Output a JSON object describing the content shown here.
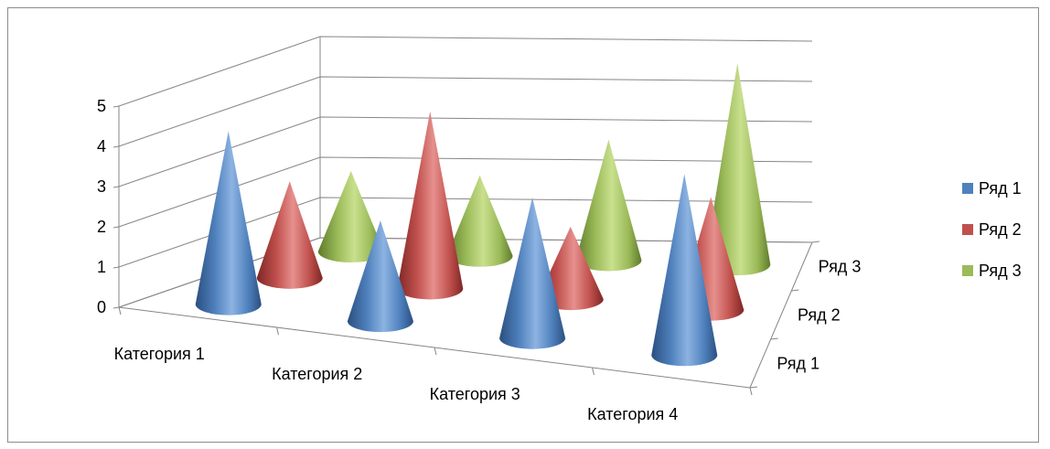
{
  "chart_data": {
    "type": "bar",
    "subtype": "3d-cone",
    "categories": [
      "Категория 1",
      "Категория 2",
      "Категория 3",
      "Категория 4"
    ],
    "series": [
      {
        "name": "Ряд 1",
        "values": [
          4.3,
          2.5,
          3.5,
          4.5
        ]
      },
      {
        "name": "Ряд 2",
        "values": [
          2.4,
          4.4,
          1.8,
          2.8
        ]
      },
      {
        "name": "Ряд 3",
        "values": [
          2.0,
          2.0,
          3.0,
          5.0
        ]
      }
    ],
    "depth_labels": [
      "Ряд 1",
      "Ряд 2",
      "Ряд 3"
    ],
    "yticks": [
      "0",
      "1",
      "2",
      "3",
      "4",
      "5"
    ],
    "ylim": [
      0,
      5
    ],
    "grid": true,
    "legend_position": "right",
    "colors": {
      "series": [
        "#4f81bd",
        "#c0504d",
        "#9bbb59"
      ],
      "series_light": [
        "#8db3e2",
        "#e6908d",
        "#c9e08e"
      ],
      "series_dark": [
        "#2b4f80",
        "#7d2624",
        "#5f7a2a"
      ],
      "axis": "#868686",
      "grid": "#868686",
      "frame": "#8c8c8c"
    }
  }
}
